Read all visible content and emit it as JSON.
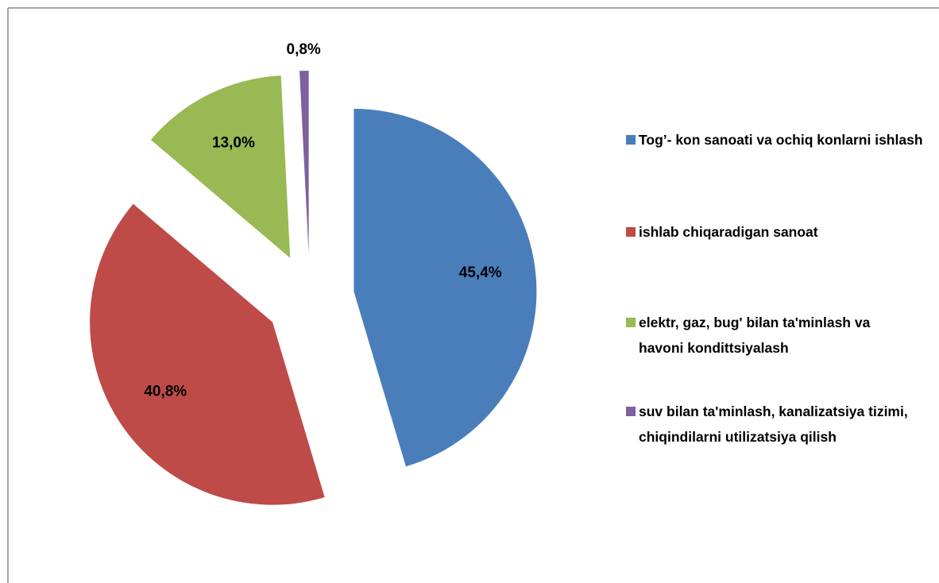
{
  "chart_data": {
    "type": "pie",
    "categories": [
      "Tog’- kon sanoati va ochiq konlarni ishlash",
      "ishlab chiqaradigan  sanoat",
      "elektr, gaz, bug'  bilan ta'minlash va havoni kondittsiyalash",
      "suv bilan ta'minlash, kanalizatsiya tizimi, chiqindilarni utilizatsiya qilish"
    ],
    "values": [
      45.4,
      40.8,
      13.0,
      0.8
    ],
    "value_labels": [
      "45,4%",
      "40,8%",
      "13,0%",
      "0,8%"
    ],
    "colors": [
      "#4a7ebb",
      "#be4b48",
      "#98b954",
      "#7d60a0"
    ],
    "legend": "right"
  }
}
